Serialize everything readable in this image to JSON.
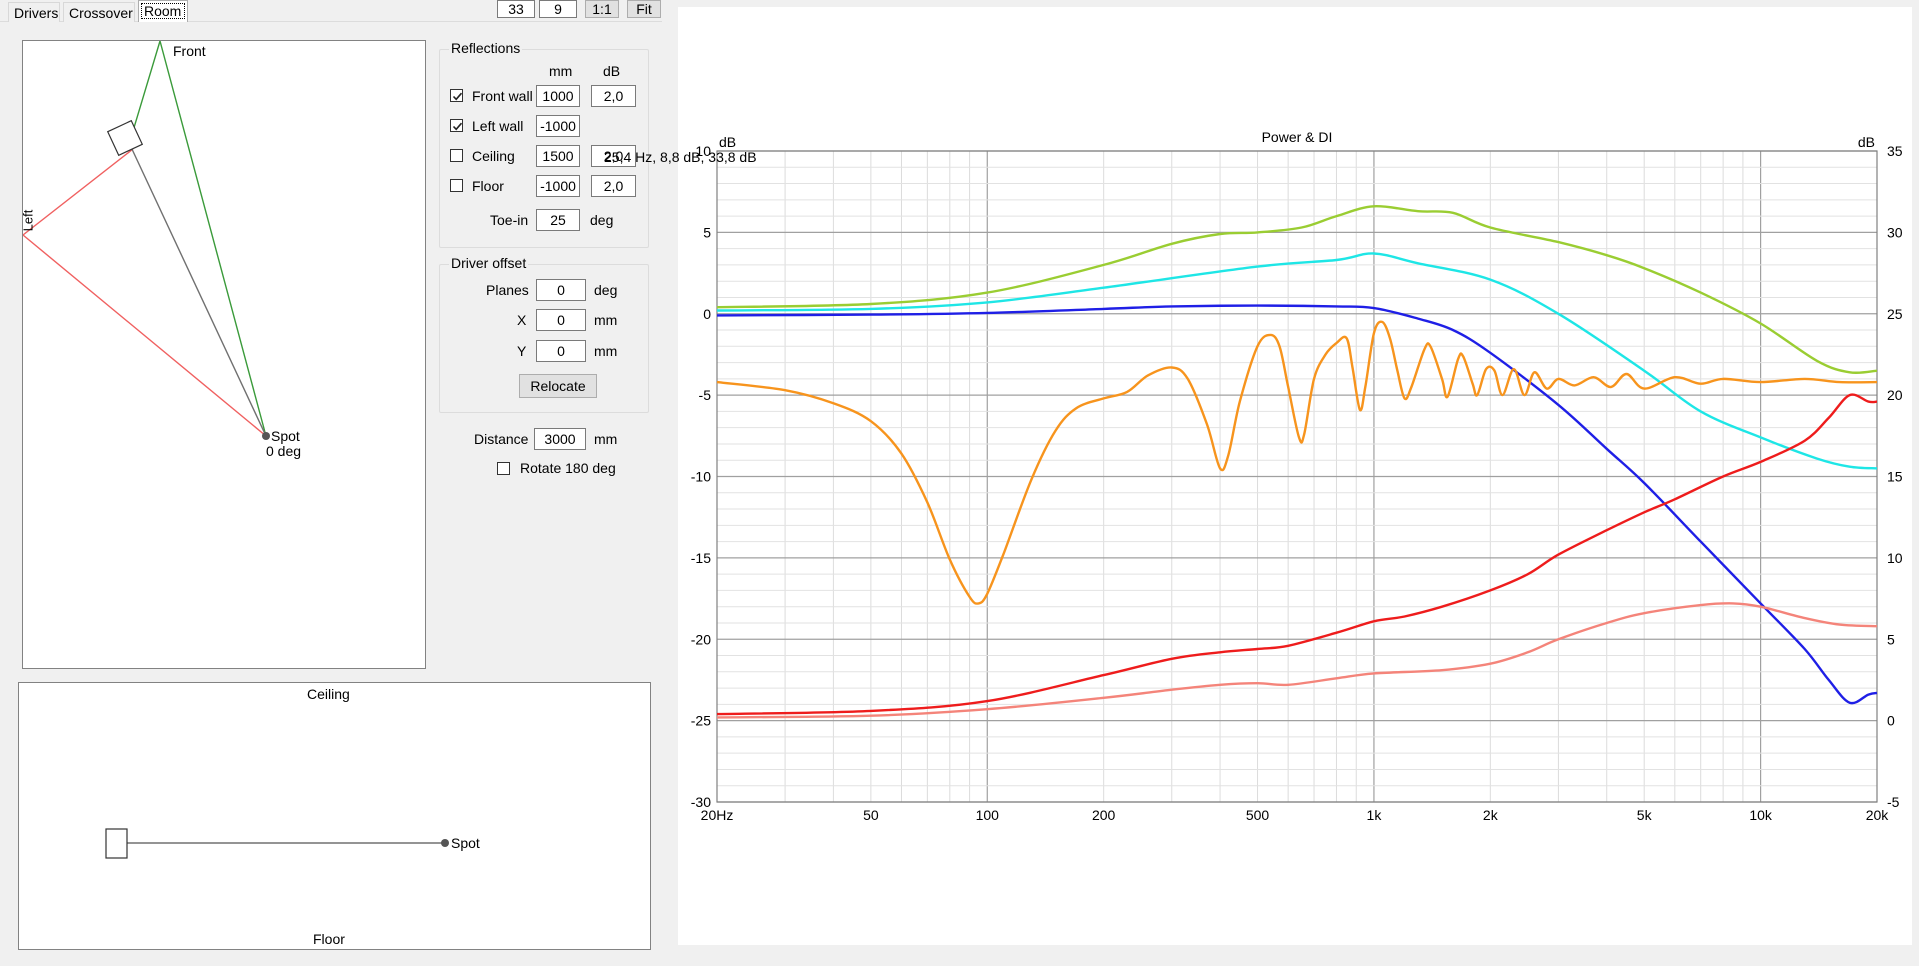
{
  "tabs": [
    {
      "label": "Drivers",
      "active": false
    },
    {
      "label": "Crossover",
      "active": false
    },
    {
      "label": "Room",
      "active": true
    }
  ],
  "toolbar": {
    "value_a": "33",
    "value_b": "9",
    "one_to_one_label": "1:1",
    "fit_label": "Fit"
  },
  "room_plan": {
    "front_label": "Front",
    "left_label": "Left",
    "spot_label": "Spot",
    "spot_angle_label": "0 deg"
  },
  "side_view": {
    "ceiling_label": "Ceiling",
    "floor_label": "Floor",
    "spot_label": "Spot"
  },
  "reflections": {
    "title": "Reflections",
    "col_mm": "mm",
    "col_db": "dB",
    "rows": [
      {
        "label": "Front wall",
        "checked": true,
        "mm": "1000",
        "db": "2,0"
      },
      {
        "label": "Left wall",
        "checked": true,
        "mm": "-1000",
        "db": ""
      },
      {
        "label": "Ceiling",
        "checked": false,
        "mm": "1500",
        "db": "2,0"
      },
      {
        "label": "Floor",
        "checked": false,
        "mm": "-1000",
        "db": "2,0"
      }
    ],
    "toe_in_label": "Toe-in",
    "toe_in_value": "25",
    "toe_in_unit": "deg"
  },
  "driver_offset": {
    "title": "Driver offset",
    "planes_label": "Planes",
    "planes_value": "0",
    "planes_unit": "deg",
    "x_label": "X",
    "x_value": "0",
    "x_unit": "mm",
    "y_label": "Y",
    "y_value": "0",
    "y_unit": "mm",
    "relocate_label": "Relocate"
  },
  "distance": {
    "label": "Distance",
    "value": "3000",
    "unit": "mm",
    "rotate_label": "Rotate 180 deg",
    "rotate_checked": false
  },
  "tooltip": "25,4 Hz, 8,8 dB, 33,8 dB",
  "chart_data": {
    "type": "line",
    "title": "Power & DI",
    "ylabel_left": "dB",
    "ylabel_right": "dB",
    "x_scale": "log",
    "xlim": [
      20,
      20000
    ],
    "ylim_left": [
      -30,
      10
    ],
    "ylim_right": [
      -5,
      35
    ],
    "x_tick_labels": [
      {
        "v": 20,
        "t": "20Hz"
      },
      {
        "v": 50,
        "t": "50"
      },
      {
        "v": 100,
        "t": "100"
      },
      {
        "v": 200,
        "t": "200"
      },
      {
        "v": 500,
        "t": "500"
      },
      {
        "v": 1000,
        "t": "1k"
      },
      {
        "v": 2000,
        "t": "2k"
      },
      {
        "v": 5000,
        "t": "5k"
      },
      {
        "v": 10000,
        "t": "10k"
      },
      {
        "v": 20000,
        "t": "20k"
      }
    ],
    "y_left_ticks": [
      10,
      5,
      0,
      -5,
      -10,
      -15,
      -20,
      -25,
      -30
    ],
    "y_right_ticks": [
      35,
      30,
      25,
      20,
      15,
      10,
      5,
      0,
      -5
    ],
    "grid": true,
    "series": [
      {
        "color": "#9acd32",
        "axis": "left",
        "points": [
          [
            20,
            0.4
          ],
          [
            50,
            0.6
          ],
          [
            100,
            1.3
          ],
          [
            200,
            3.0
          ],
          [
            300,
            4.3
          ],
          [
            400,
            4.9
          ],
          [
            500,
            5.0
          ],
          [
            650,
            5.3
          ],
          [
            800,
            6.0
          ],
          [
            1000,
            6.6
          ],
          [
            1300,
            6.3
          ],
          [
            1600,
            6.2
          ],
          [
            2000,
            5.3
          ],
          [
            3000,
            4.4
          ],
          [
            4000,
            3.6
          ],
          [
            5000,
            2.8
          ],
          [
            7000,
            1.3
          ],
          [
            10000,
            -0.6
          ],
          [
            14000,
            -2.9
          ],
          [
            17000,
            -3.6
          ],
          [
            20000,
            -3.5
          ]
        ]
      },
      {
        "color": "#1ee6e6",
        "axis": "left",
        "points": [
          [
            20,
            0.2
          ],
          [
            50,
            0.3
          ],
          [
            100,
            0.7
          ],
          [
            200,
            1.6
          ],
          [
            500,
            2.9
          ],
          [
            800,
            3.3
          ],
          [
            1000,
            3.7
          ],
          [
            1300,
            3.1
          ],
          [
            2000,
            2.1
          ],
          [
            3000,
            0.0
          ],
          [
            5000,
            -3.5
          ],
          [
            7000,
            -6.0
          ],
          [
            10000,
            -7.6
          ],
          [
            14000,
            -8.9
          ],
          [
            17000,
            -9.4
          ],
          [
            20000,
            -9.5
          ]
        ]
      },
      {
        "color": "#1f1fe6",
        "axis": "left",
        "points": [
          [
            20,
            -0.1
          ],
          [
            50,
            -0.05
          ],
          [
            100,
            0.05
          ],
          [
            200,
            0.3
          ],
          [
            300,
            0.45
          ],
          [
            500,
            0.5
          ],
          [
            800,
            0.45
          ],
          [
            1000,
            0.35
          ],
          [
            1300,
            -0.3
          ],
          [
            1600,
            -1.0
          ],
          [
            2000,
            -2.4
          ],
          [
            3000,
            -5.6
          ],
          [
            4000,
            -8.3
          ],
          [
            5000,
            -10.4
          ],
          [
            7000,
            -14.0
          ],
          [
            10000,
            -17.8
          ],
          [
            13000,
            -20.6
          ],
          [
            15000,
            -22.5
          ],
          [
            17000,
            -23.9
          ],
          [
            19000,
            -23.4
          ],
          [
            20000,
            -23.3
          ]
        ]
      },
      {
        "color": "#ee1c1c",
        "axis": "left",
        "points": [
          [
            20,
            -24.6
          ],
          [
            50,
            -24.4
          ],
          [
            100,
            -23.8
          ],
          [
            200,
            -22.2
          ],
          [
            300,
            -21.2
          ],
          [
            400,
            -20.8
          ],
          [
            500,
            -20.6
          ],
          [
            600,
            -20.4
          ],
          [
            800,
            -19.6
          ],
          [
            1000,
            -18.9
          ],
          [
            1200,
            -18.6
          ],
          [
            1500,
            -18.0
          ],
          [
            2000,
            -17.0
          ],
          [
            2500,
            -16.0
          ],
          [
            3000,
            -14.8
          ],
          [
            4000,
            -13.3
          ],
          [
            5000,
            -12.2
          ],
          [
            6000,
            -11.4
          ],
          [
            8000,
            -10.0
          ],
          [
            10000,
            -9.1
          ],
          [
            13000,
            -7.8
          ],
          [
            15000,
            -6.4
          ],
          [
            17000,
            -5.0
          ],
          [
            19000,
            -5.4
          ],
          [
            20000,
            -5.4
          ]
        ]
      },
      {
        "color": "#f4847a",
        "axis": "left",
        "points": [
          [
            20,
            -24.8
          ],
          [
            50,
            -24.7
          ],
          [
            100,
            -24.3
          ],
          [
            200,
            -23.6
          ],
          [
            300,
            -23.1
          ],
          [
            400,
            -22.8
          ],
          [
            500,
            -22.7
          ],
          [
            600,
            -22.8
          ],
          [
            800,
            -22.4
          ],
          [
            1000,
            -22.1
          ],
          [
            1500,
            -21.9
          ],
          [
            2000,
            -21.5
          ],
          [
            2500,
            -20.8
          ],
          [
            3000,
            -20.0
          ],
          [
            4000,
            -19.0
          ],
          [
            5000,
            -18.4
          ],
          [
            7000,
            -17.9
          ],
          [
            8500,
            -17.8
          ],
          [
            10000,
            -18.0
          ],
          [
            13000,
            -18.7
          ],
          [
            16000,
            -19.1
          ],
          [
            20000,
            -19.2
          ]
        ]
      },
      {
        "color": "#f7941d",
        "axis": "left",
        "points": [
          [
            20,
            -4.2
          ],
          [
            30,
            -4.7
          ],
          [
            40,
            -5.5
          ],
          [
            50,
            -6.6
          ],
          [
            60,
            -8.6
          ],
          [
            70,
            -11.6
          ],
          [
            80,
            -15.1
          ],
          [
            90,
            -17.4
          ],
          [
            95,
            -17.8
          ],
          [
            100,
            -17.2
          ],
          [
            110,
            -14.8
          ],
          [
            130,
            -10.2
          ],
          [
            150,
            -7.2
          ],
          [
            170,
            -5.8
          ],
          [
            200,
            -5.2
          ],
          [
            230,
            -4.8
          ],
          [
            260,
            -3.8
          ],
          [
            300,
            -3.3
          ],
          [
            330,
            -4.0
          ],
          [
            370,
            -6.8
          ],
          [
            400,
            -9.5
          ],
          [
            420,
            -8.7
          ],
          [
            450,
            -5.4
          ],
          [
            500,
            -2.0
          ],
          [
            540,
            -1.3
          ],
          [
            570,
            -2.0
          ],
          [
            600,
            -4.5
          ],
          [
            640,
            -7.6
          ],
          [
            660,
            -7.4
          ],
          [
            700,
            -4.0
          ],
          [
            750,
            -2.5
          ],
          [
            800,
            -1.8
          ],
          [
            850,
            -1.5
          ],
          [
            880,
            -3.3
          ],
          [
            920,
            -5.9
          ],
          [
            950,
            -4.5
          ],
          [
            1000,
            -1.2
          ],
          [
            1050,
            -0.5
          ],
          [
            1100,
            -1.5
          ],
          [
            1150,
            -3.5
          ],
          [
            1200,
            -5.2
          ],
          [
            1250,
            -4.5
          ],
          [
            1350,
            -2.2
          ],
          [
            1400,
            -2.0
          ],
          [
            1500,
            -4.0
          ],
          [
            1550,
            -5.1
          ],
          [
            1650,
            -2.8
          ],
          [
            1700,
            -2.6
          ],
          [
            1800,
            -4.3
          ],
          [
            1850,
            -5.0
          ],
          [
            1950,
            -3.4
          ],
          [
            2050,
            -3.5
          ],
          [
            2150,
            -5.0
          ],
          [
            2300,
            -3.4
          ],
          [
            2450,
            -5.0
          ],
          [
            2600,
            -3.6
          ],
          [
            2800,
            -4.6
          ],
          [
            3000,
            -4.0
          ],
          [
            3300,
            -4.4
          ],
          [
            3700,
            -3.9
          ],
          [
            4100,
            -4.5
          ],
          [
            4500,
            -3.7
          ],
          [
            5000,
            -4.6
          ],
          [
            6000,
            -3.9
          ],
          [
            7000,
            -4.3
          ],
          [
            8000,
            -4.0
          ],
          [
            10000,
            -4.2
          ],
          [
            13000,
            -4.0
          ],
          [
            16000,
            -4.2
          ],
          [
            20000,
            -4.2
          ]
        ]
      }
    ]
  }
}
